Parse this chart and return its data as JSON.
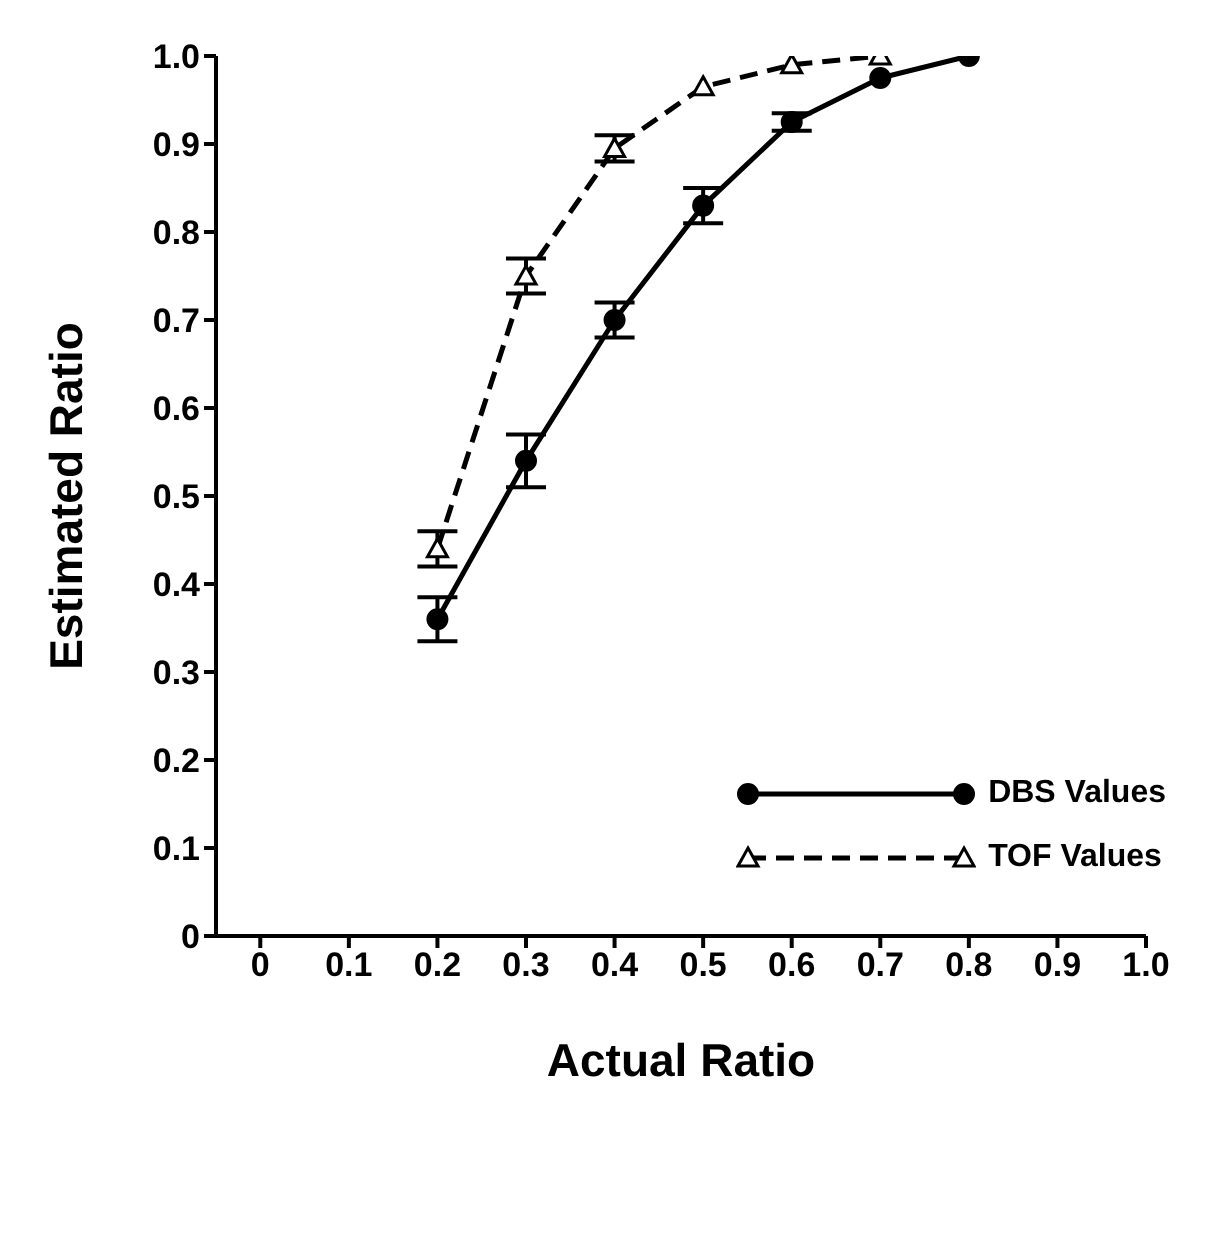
{
  "chart_data": {
    "type": "line",
    "xlabel": "Actual Ratio",
    "ylabel": "Estimated Ratio",
    "x": [
      0.2,
      0.3,
      0.4,
      0.5,
      0.6,
      0.7,
      0.8
    ],
    "series": [
      {
        "name": "DBS Values",
        "color": "#000000",
        "marker": "circle",
        "line_style": "solid",
        "values": [
          0.36,
          0.54,
          0.7,
          0.83,
          0.925,
          0.975,
          1.0
        ],
        "errors": [
          0.025,
          0.03,
          0.02,
          0.02,
          0.01,
          null,
          null
        ]
      },
      {
        "name": "TOF Values",
        "color": "#000000",
        "marker": "triangle",
        "line_style": "dashed",
        "values": [
          0.44,
          0.75,
          0.895,
          0.965,
          0.99,
          1.0,
          null
        ],
        "errors": [
          0.02,
          0.02,
          0.015,
          null,
          null,
          null,
          null
        ]
      }
    ],
    "xlim": [
      -0.05,
      1.0
    ],
    "xticks": [
      0,
      0.1,
      0.2,
      0.3,
      0.4,
      0.5,
      0.6,
      0.7,
      0.8,
      0.9,
      {
        "value": 1,
        "label": "1.0"
      }
    ],
    "ylim": [
      0,
      1.0
    ],
    "yticks": [
      0,
      0.1,
      0.2,
      0.3,
      0.4,
      0.5,
      0.6,
      0.7,
      0.8,
      0.9,
      {
        "value": 1,
        "label": "1.0"
      }
    ],
    "grid": false,
    "legend": "bottom right"
  }
}
